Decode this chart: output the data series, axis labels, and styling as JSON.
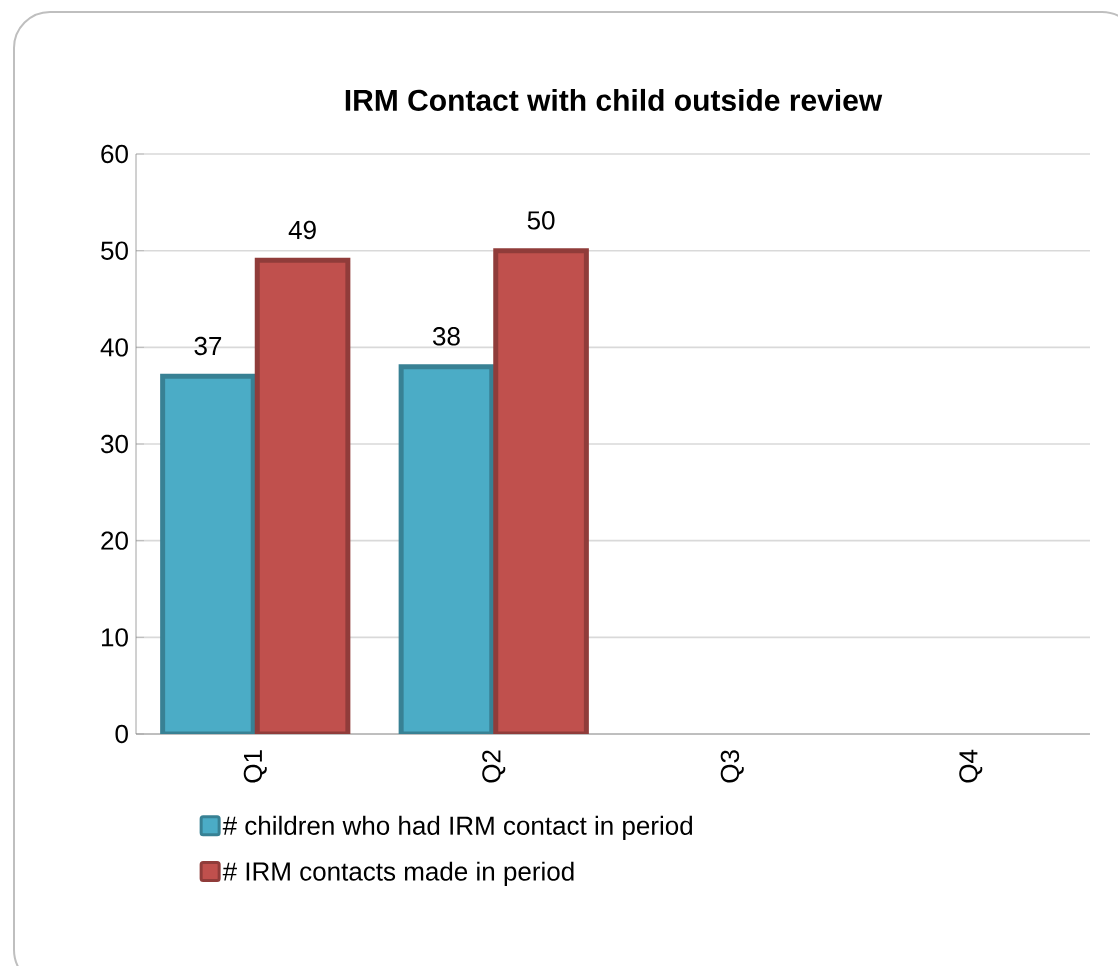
{
  "chart_data": {
    "type": "bar",
    "title": "IRM Contact with child outside review",
    "categories": [
      "Q1",
      "Q2",
      "Q3",
      "Q4"
    ],
    "series": [
      {
        "name": "# children who had IRM contact in period",
        "color": "#4bacc6",
        "values": [
          37,
          38,
          null,
          null
        ]
      },
      {
        "name": "# IRM contacts made in period",
        "color": "#c0504d",
        "values": [
          49,
          50,
          null,
          null
        ]
      }
    ],
    "ylim": [
      0,
      60
    ],
    "yticks": [
      0,
      10,
      20,
      30,
      40,
      50,
      60
    ],
    "grid": "y",
    "legend": "bottom",
    "data_labels": true
  }
}
